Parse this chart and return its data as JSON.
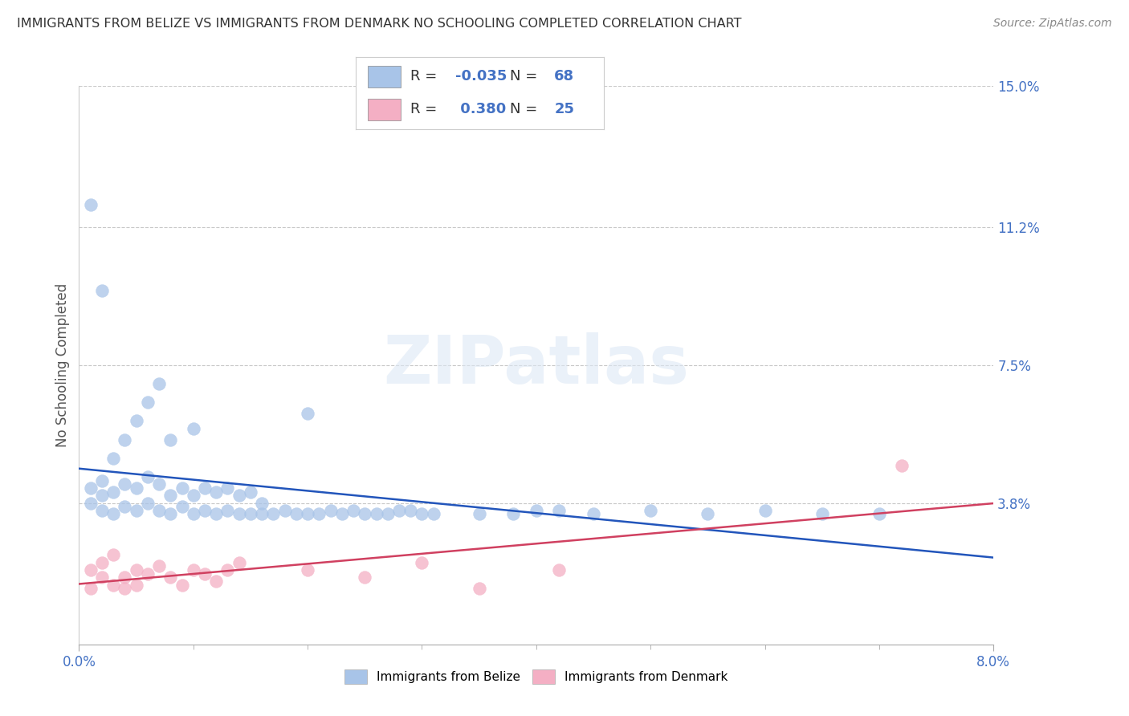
{
  "title": "IMMIGRANTS FROM BELIZE VS IMMIGRANTS FROM DENMARK NO SCHOOLING COMPLETED CORRELATION CHART",
  "source": "Source: ZipAtlas.com",
  "ylabel": "No Schooling Completed",
  "xlim": [
    0.0,
    0.08
  ],
  "ylim": [
    0.0,
    0.15
  ],
  "ytick_labels": [
    "15.0%",
    "11.2%",
    "7.5%",
    "3.8%"
  ],
  "ytick_positions": [
    0.15,
    0.112,
    0.075,
    0.038
  ],
  "belize_color": "#a8c4e8",
  "denmark_color": "#f4afc4",
  "belize_line_color": "#2255bb",
  "denmark_line_color": "#d04060",
  "belize_R": -0.035,
  "belize_N": 68,
  "denmark_R": 0.38,
  "denmark_N": 25,
  "legend_label_belize": "Immigrants from Belize",
  "legend_label_denmark": "Immigrants from Denmark",
  "watermark": "ZIPatlas",
  "title_fontsize": 11.5,
  "tick_color": "#4472c4",
  "grid_color": "#c8c8c8",
  "belize_scatter_x": [
    0.001,
    0.001,
    0.002,
    0.002,
    0.002,
    0.003,
    0.003,
    0.003,
    0.004,
    0.004,
    0.004,
    0.005,
    0.005,
    0.005,
    0.006,
    0.006,
    0.006,
    0.007,
    0.007,
    0.007,
    0.008,
    0.008,
    0.008,
    0.009,
    0.009,
    0.01,
    0.01,
    0.01,
    0.011,
    0.011,
    0.012,
    0.012,
    0.013,
    0.013,
    0.014,
    0.014,
    0.015,
    0.015,
    0.016,
    0.016,
    0.017,
    0.018,
    0.019,
    0.02,
    0.02,
    0.021,
    0.022,
    0.023,
    0.024,
    0.025,
    0.026,
    0.027,
    0.028,
    0.029,
    0.03,
    0.031,
    0.035,
    0.038,
    0.04,
    0.042,
    0.045,
    0.05,
    0.055,
    0.06,
    0.065,
    0.07,
    0.001,
    0.002
  ],
  "belize_scatter_y": [
    0.038,
    0.042,
    0.036,
    0.04,
    0.044,
    0.035,
    0.041,
    0.05,
    0.037,
    0.043,
    0.055,
    0.036,
    0.042,
    0.06,
    0.038,
    0.045,
    0.065,
    0.036,
    0.043,
    0.07,
    0.035,
    0.04,
    0.055,
    0.037,
    0.042,
    0.035,
    0.04,
    0.058,
    0.036,
    0.042,
    0.035,
    0.041,
    0.036,
    0.042,
    0.035,
    0.04,
    0.035,
    0.041,
    0.035,
    0.038,
    0.035,
    0.036,
    0.035,
    0.035,
    0.062,
    0.035,
    0.036,
    0.035,
    0.036,
    0.035,
    0.035,
    0.035,
    0.036,
    0.036,
    0.035,
    0.035,
    0.035,
    0.035,
    0.036,
    0.036,
    0.035,
    0.036,
    0.035,
    0.036,
    0.035,
    0.035,
    0.118,
    0.095
  ],
  "denmark_scatter_x": [
    0.001,
    0.001,
    0.002,
    0.002,
    0.003,
    0.003,
    0.004,
    0.004,
    0.005,
    0.005,
    0.006,
    0.007,
    0.008,
    0.009,
    0.01,
    0.011,
    0.012,
    0.013,
    0.014,
    0.02,
    0.025,
    0.03,
    0.035,
    0.042,
    0.072
  ],
  "denmark_scatter_y": [
    0.02,
    0.015,
    0.018,
    0.022,
    0.016,
    0.024,
    0.018,
    0.015,
    0.02,
    0.016,
    0.019,
    0.021,
    0.018,
    0.016,
    0.02,
    0.019,
    0.017,
    0.02,
    0.022,
    0.02,
    0.018,
    0.022,
    0.015,
    0.02,
    0.048
  ]
}
